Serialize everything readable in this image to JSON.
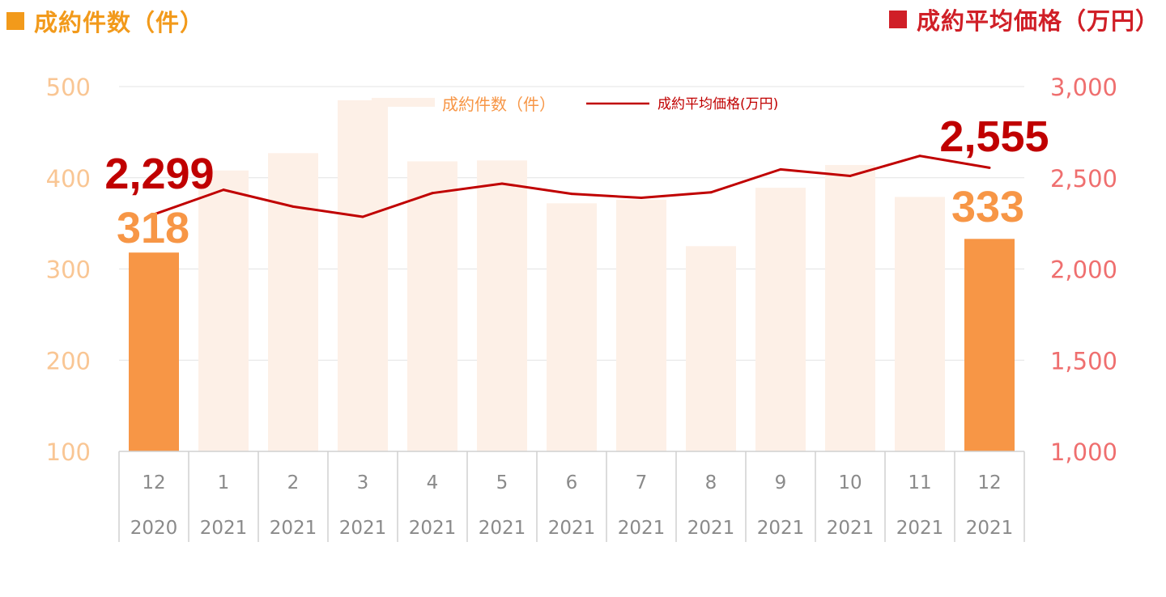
{
  "titles": {
    "left": "成約件数（件）",
    "right": "成約平均価格（万円）"
  },
  "colors": {
    "bar_highlight": "#f79646",
    "bar_faded": "#fdf0e7",
    "line": "#c00000",
    "left_axis_text": "#f9c694",
    "right_axis_text": "#ef6f6f",
    "left_title": "#f29a1b",
    "right_title": "#d01f27",
    "tick_text": "#8a8a8a",
    "gridline": "#e3e3e3",
    "label_count": "#f79646",
    "label_price": "#c00000"
  },
  "legend": {
    "count": "成約件数（件）",
    "price": "成約平均価格(万円)"
  },
  "chart_data": {
    "type": "bar",
    "categories": [
      {
        "month": "12",
        "year": "2020"
      },
      {
        "month": "1",
        "year": "2021"
      },
      {
        "month": "2",
        "year": "2021"
      },
      {
        "month": "3",
        "year": "2021"
      },
      {
        "month": "4",
        "year": "2021"
      },
      {
        "month": "5",
        "year": "2021"
      },
      {
        "month": "6",
        "year": "2021"
      },
      {
        "month": "7",
        "year": "2021"
      },
      {
        "month": "8",
        "year": "2021"
      },
      {
        "month": "9",
        "year": "2021"
      },
      {
        "month": "10",
        "year": "2021"
      },
      {
        "month": "11",
        "year": "2021"
      },
      {
        "month": "12",
        "year": "2021"
      }
    ],
    "series": [
      {
        "name": "成約件数（件）",
        "type": "bar",
        "axis": "left",
        "values": [
          318,
          408,
          427,
          485,
          418,
          419,
          372,
          376,
          325,
          389,
          414,
          379,
          333
        ],
        "highlight": [
          true,
          false,
          false,
          false,
          false,
          false,
          false,
          false,
          false,
          false,
          false,
          false,
          true
        ]
      },
      {
        "name": "成約平均価格(万円)",
        "type": "line",
        "axis": "right",
        "values": [
          2299,
          2434,
          2342,
          2286,
          2416,
          2468,
          2412,
          2390,
          2420,
          2546,
          2510,
          2620,
          2555
        ]
      }
    ],
    "y_left": {
      "min": 100,
      "max": 500,
      "ticks": [
        100,
        200,
        300,
        400,
        500
      ],
      "tick_labels": [
        "100",
        "200",
        "300",
        "400",
        "500"
      ]
    },
    "y_right": {
      "min": 1000,
      "max": 3000,
      "ticks": [
        1000,
        1500,
        2000,
        2500,
        3000
      ],
      "tick_labels": [
        "1,000",
        "1,500",
        "2,000",
        "2,500",
        "3,000"
      ]
    },
    "gridlines": true,
    "legend_position": "top-center",
    "annotations": [
      {
        "series": "成約平均価格(万円)",
        "index": 0,
        "text": "2,299"
      },
      {
        "series": "成約件数（件）",
        "index": 0,
        "text": "318"
      },
      {
        "series": "成約平均価格(万円)",
        "index": 12,
        "text": "2,555"
      },
      {
        "series": "成約件数（件）",
        "index": 12,
        "text": "333"
      }
    ]
  }
}
